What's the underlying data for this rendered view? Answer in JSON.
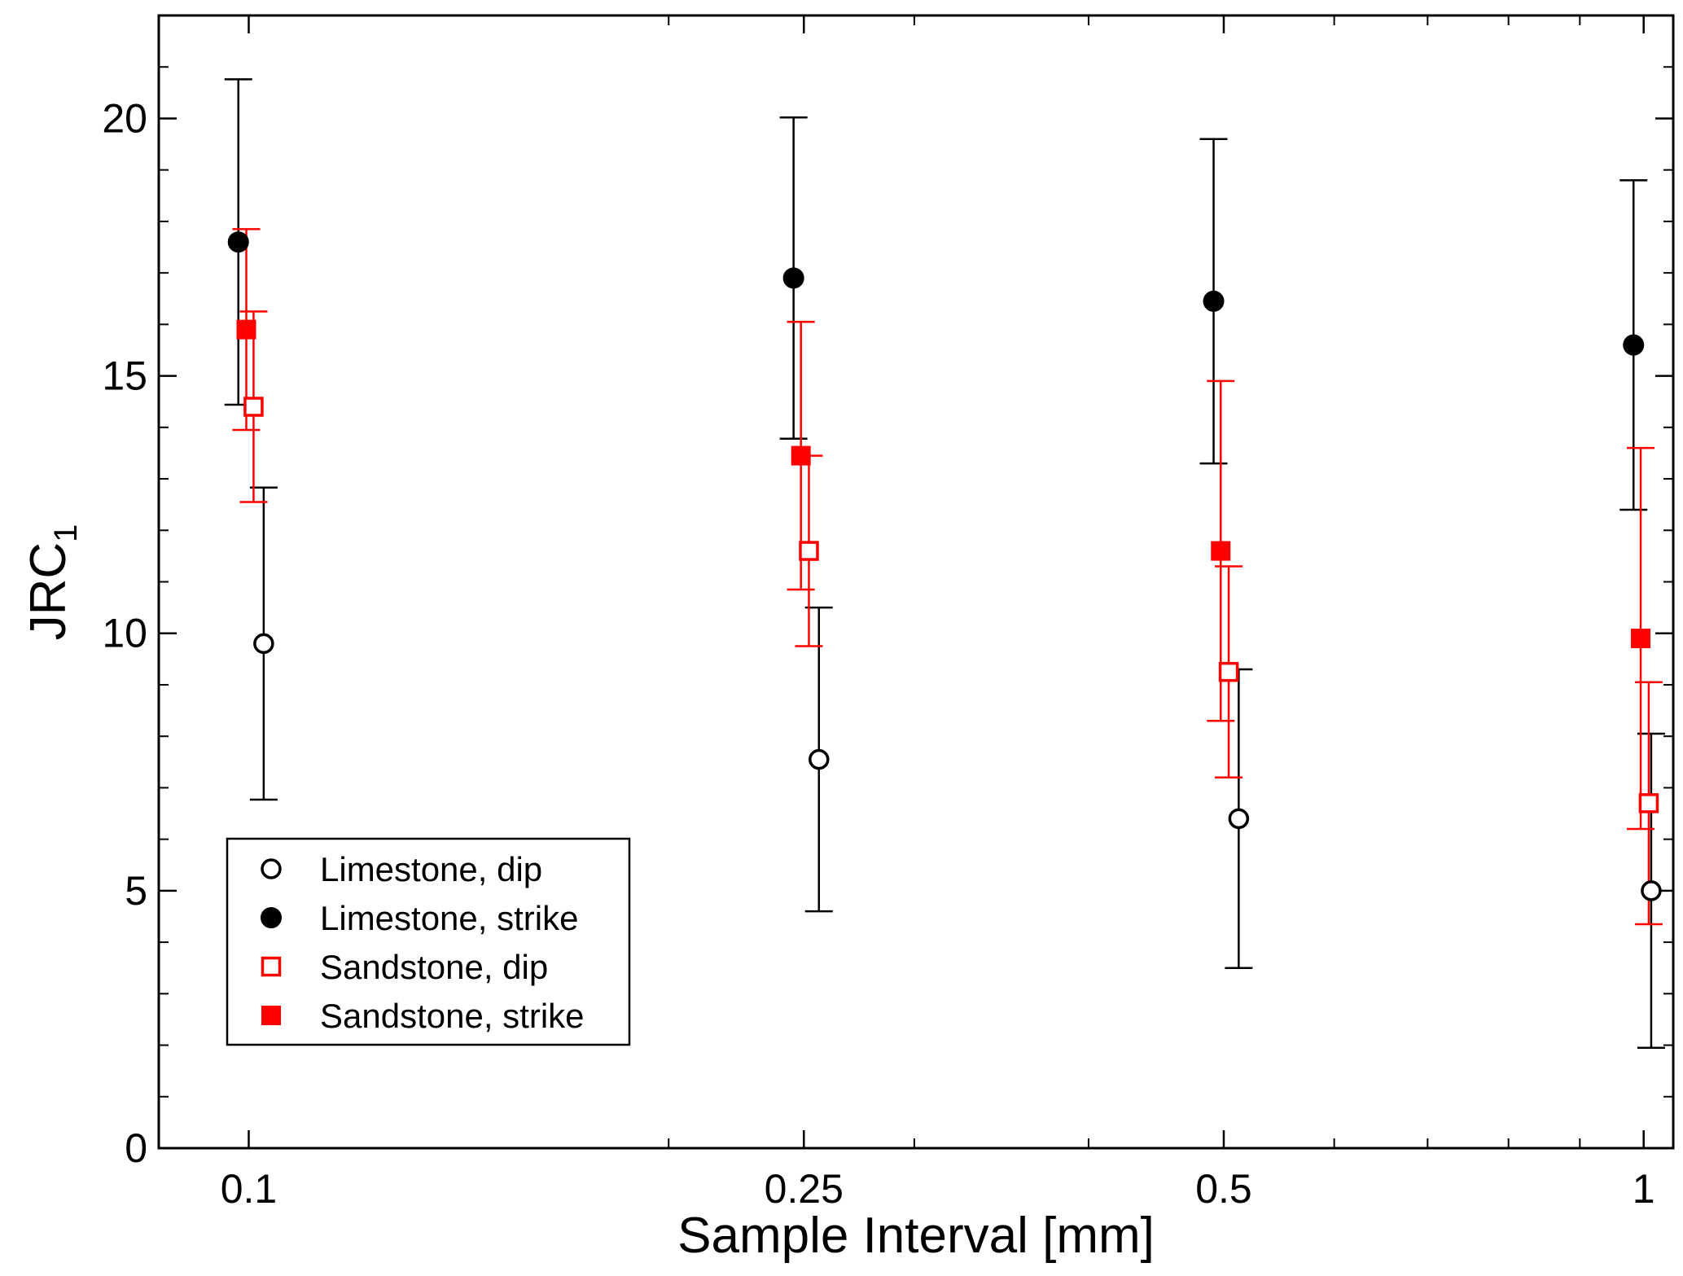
{
  "chart_data": {
    "type": "scatter",
    "xlabel": "Sample Interval  [mm]",
    "ylabel": {
      "main": "JRC",
      "subscript": "1"
    },
    "x_scale": "log",
    "xlim": [
      0.0862,
      1.05
    ],
    "ylim": [
      0,
      22
    ],
    "x_tick_labels": [
      "0.1",
      "0.25",
      "0.5",
      "1"
    ],
    "x_ticks": [
      0.1,
      0.25,
      0.5,
      1
    ],
    "x_minor_ticks": [
      0.2,
      0.3,
      0.4,
      0.6,
      0.7,
      0.8,
      0.9
    ],
    "y_tick_labels": [
      "0",
      "5",
      "10",
      "15",
      "20"
    ],
    "y_ticks": [
      0,
      5,
      10,
      15,
      20
    ],
    "y_minor_ticks": [
      1,
      2,
      3,
      4,
      6,
      7,
      8,
      9,
      11,
      12,
      13,
      14,
      16,
      17,
      18,
      19,
      21
    ],
    "grid": false,
    "legend_position": "bottom-left",
    "series": [
      {
        "name": "Limestone, dip",
        "marker": "open-circle",
        "color": "#000000",
        "x": [
          0.1025,
          0.2563,
          0.5125,
          1.0125
        ],
        "y": [
          9.8,
          7.55,
          6.4,
          5.0
        ],
        "err": [
          3.03,
          2.95,
          2.9,
          3.05
        ]
      },
      {
        "name": "Limestone, strike",
        "marker": "filled-circle",
        "color": "#000000",
        "x": [
          0.0983,
          0.2458,
          0.4917,
          0.9834
        ],
        "y": [
          17.6,
          16.9,
          16.45,
          15.6
        ],
        "err": [
          3.16,
          3.12,
          3.15,
          3.2
        ]
      },
      {
        "name": "Sandstone, dip",
        "marker": "open-square",
        "color": "#ff0000",
        "x": [
          0.1008,
          0.2521,
          0.5041,
          1.0084
        ],
        "y": [
          14.4,
          11.6,
          9.25,
          6.7
        ],
        "err": [
          1.85,
          1.85,
          2.05,
          2.35
        ]
      },
      {
        "name": "Sandstone, strike",
        "marker": "filled-square",
        "color": "#ff0000",
        "x": [
          0.0996,
          0.2488,
          0.4975,
          0.9951
        ],
        "y": [
          15.9,
          13.45,
          11.6,
          9.9
        ],
        "err": [
          1.95,
          2.6,
          3.3,
          3.7
        ]
      }
    ]
  }
}
